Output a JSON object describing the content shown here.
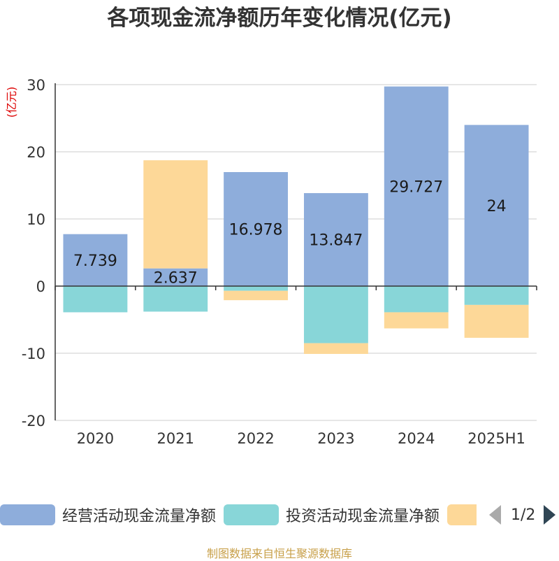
{
  "title": "各项现金流净额历年变化情况(亿元)",
  "source": "制图数据来自恒生聚源数据库",
  "legend_page": "1/2",
  "chart_data": {
    "type": "bar",
    "stacked": true,
    "title": "各项现金流净额历年变化情况(亿元)",
    "ylabel": "(亿元)",
    "ylim": [
      -20,
      30
    ],
    "yticks": [
      -20,
      -10,
      0,
      10,
      20,
      30
    ],
    "grid": true,
    "legend_position": "bottom",
    "categories": [
      "2020",
      "2021",
      "2022",
      "2023",
      "2024",
      "2025H1"
    ],
    "series": [
      {
        "name": "经营活动现金流量净额",
        "color": "#8eaddb",
        "values": [
          7.739,
          2.637,
          16.978,
          13.847,
          29.727,
          24
        ],
        "labels": [
          "7.739",
          "2.637",
          "16.978",
          "13.847",
          "29.727",
          "24"
        ]
      },
      {
        "name": "投资活动现金流量净额",
        "color": "#88d6d8",
        "values": [
          -3.9,
          -3.8,
          -0.7,
          -8.5,
          -3.9,
          -2.8
        ]
      },
      {
        "name": "",
        "color": "#fdd898",
        "values": [
          0,
          16.1,
          -1.4,
          -1.6,
          -2.4,
          -4.9
        ]
      }
    ]
  }
}
